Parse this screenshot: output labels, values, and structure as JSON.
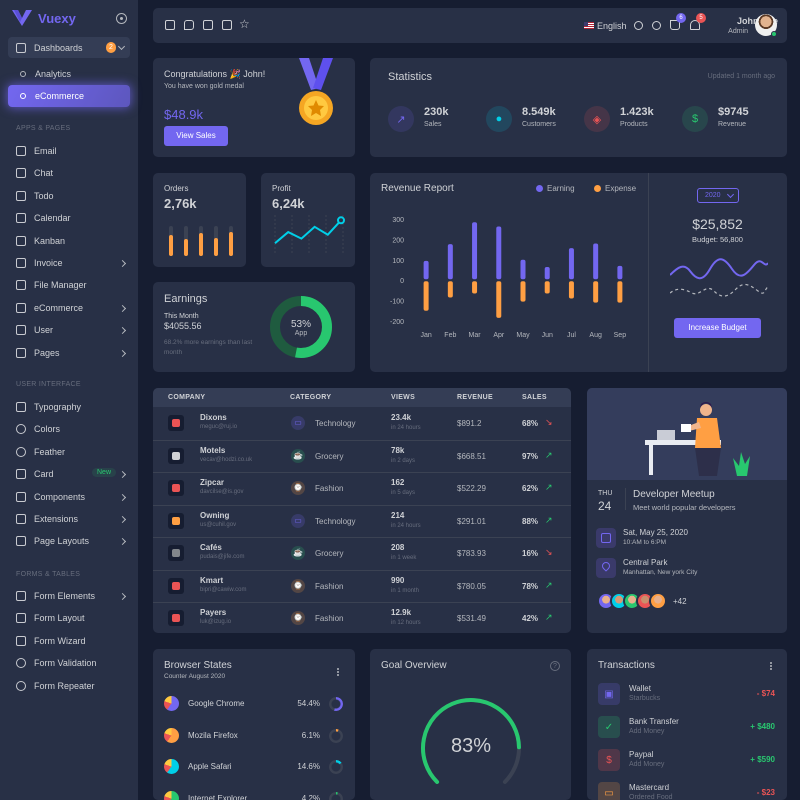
{
  "brand": {
    "name": "Vuexy",
    "color": "#7367f0"
  },
  "sidebar": {
    "dashboards": {
      "label": "Dashboards",
      "badge": "2"
    },
    "dashboard_items": [
      {
        "label": "Analytics"
      },
      {
        "label": "eCommerce",
        "active": true
      }
    ],
    "sections": {
      "apps": "APPS & PAGES",
      "ui": "USER INTERFACE",
      "forms": "FORMS & TABLES"
    },
    "apps": [
      {
        "label": "Email",
        "icon": "mail-icon"
      },
      {
        "label": "Chat",
        "icon": "message-icon"
      },
      {
        "label": "Todo",
        "icon": "check-square-icon"
      },
      {
        "label": "Calendar",
        "icon": "calendar-icon"
      },
      {
        "label": "Kanban",
        "icon": "grid-icon"
      },
      {
        "label": "Invoice",
        "icon": "file-text-icon",
        "chevron": true
      },
      {
        "label": "File Manager",
        "icon": "save-icon"
      },
      {
        "label": "eCommerce",
        "icon": "shopping-cart-icon",
        "chevron": true
      },
      {
        "label": "User",
        "icon": "user-icon",
        "chevron": true
      },
      {
        "label": "Pages",
        "icon": "file-icon",
        "chevron": true
      }
    ],
    "ui": [
      {
        "label": "Typography",
        "icon": "type-icon"
      },
      {
        "label": "Colors",
        "icon": "droplet-icon"
      },
      {
        "label": "Feather",
        "icon": "eye-icon"
      },
      {
        "label": "Card",
        "icon": "credit-card-icon",
        "badge": "New",
        "chevron": true
      },
      {
        "label": "Components",
        "icon": "briefcase-icon",
        "chevron": true
      },
      {
        "label": "Extensions",
        "icon": "box-icon",
        "chevron": true
      },
      {
        "label": "Page Layouts",
        "icon": "layout-icon",
        "chevron": true
      }
    ],
    "forms": [
      {
        "label": "Form Elements",
        "icon": "copy-icon",
        "chevron": true
      },
      {
        "label": "Form Layout",
        "icon": "box-icon"
      },
      {
        "label": "Form Wizard",
        "icon": "package-icon"
      },
      {
        "label": "Form Validation",
        "icon": "check-circle-icon"
      },
      {
        "label": "Form Repeater",
        "icon": "rotate-icon"
      }
    ]
  },
  "topbar": {
    "language": "English",
    "cart_count": "6",
    "notif_count": "5",
    "user_name": "John Doe",
    "user_role": "Admin"
  },
  "congrats": {
    "title": "Congratulations 🎉 John!",
    "subtitle": "You have won gold medal",
    "amount": "$48.9k",
    "button": "View Sales"
  },
  "statistics": {
    "title": "Statistics",
    "updated": "Updated 1 month ago",
    "items": [
      {
        "value": "230k",
        "label": "Sales",
        "color": "#7367f0",
        "icon": "trending-up-icon"
      },
      {
        "value": "8.549k",
        "label": "Customers",
        "color": "#00cfe8",
        "icon": "user-icon"
      },
      {
        "value": "1.423k",
        "label": "Products",
        "color": "#ea5455",
        "icon": "box-icon"
      },
      {
        "value": "$9745",
        "label": "Revenue",
        "color": "#28c76f",
        "icon": "dollar-icon"
      }
    ]
  },
  "orders": {
    "title": "Orders",
    "value": "2,76k",
    "bars": [
      0.7,
      0.55,
      0.75,
      0.6,
      0.8
    ]
  },
  "profit": {
    "title": "Profit",
    "value": "6,24k",
    "points": [
      15,
      32,
      22,
      40,
      28,
      50
    ]
  },
  "earnings": {
    "title": "Earnings",
    "period": "This Month",
    "amount": "$4055.56",
    "note": "68.2% more earnings than last month",
    "pct": 53,
    "pct_label": "53%",
    "center_label": "App"
  },
  "revenue": {
    "title": "Revenue Report",
    "legend": [
      "Earning",
      "Expense"
    ],
    "year": "2020",
    "total": "$25,852",
    "budget": "Budget: 56,800",
    "button": "Increase Budget"
  },
  "chart_data": {
    "type": "bar",
    "title": "Revenue Report",
    "categories": [
      "Jan",
      "Feb",
      "Mar",
      "Apr",
      "May",
      "Jun",
      "Jul",
      "Aug",
      "Sep"
    ],
    "series": [
      {
        "name": "Earning",
        "values": [
          95,
          177,
          284,
          263,
          100,
          65,
          157,
          180,
          70
        ],
        "color": "#7367f0"
      },
      {
        "name": "Expense",
        "values": [
          -145,
          -80,
          -60,
          -180,
          -100,
          -60,
          -85,
          -105,
          -105
        ],
        "color": "#ff9f43"
      }
    ],
    "yticks": [
      "300",
      "200",
      "100",
      "0",
      "-100",
      "-200"
    ],
    "ylim": [
      -200,
      300
    ]
  },
  "companies": {
    "headers": [
      "COMPANY",
      "CATEGORY",
      "VIEWS",
      "REVENUE",
      "SALES"
    ],
    "rows": [
      {
        "name": "Dixons",
        "email": "meguc@ruj.io",
        "category": "Technology",
        "views": "23.4k",
        "period": "in 24 hours",
        "revenue": "$891.2",
        "sales": "68%",
        "up": false,
        "cat_color": "#7367f0",
        "logo_color": "#ea5455"
      },
      {
        "name": "Motels",
        "email": "vecav@hodzi.co.uk",
        "category": "Grocery",
        "views": "78k",
        "period": "in 2 days",
        "revenue": "$668.51",
        "sales": "97%",
        "up": true,
        "cat_color": "#28c76f",
        "logo_color": "#d0d2d6"
      },
      {
        "name": "Zipcar",
        "email": "davcilse@is.gov",
        "category": "Fashion",
        "views": "162",
        "period": "in 5 days",
        "revenue": "$522.29",
        "sales": "62%",
        "up": true,
        "cat_color": "#ff9f43",
        "logo_color": "#ea5455"
      },
      {
        "name": "Owning",
        "email": "us@cuhil.gov",
        "category": "Technology",
        "views": "214",
        "period": "in 24 hours",
        "revenue": "$291.01",
        "sales": "88%",
        "up": true,
        "cat_color": "#7367f0",
        "logo_color": "#ff9f43"
      },
      {
        "name": "Cafés",
        "email": "pudais@jife.com",
        "category": "Grocery",
        "views": "208",
        "period": "in 1 week",
        "revenue": "$783.93",
        "sales": "16%",
        "up": false,
        "cat_color": "#28c76f",
        "logo_color": "#82868b"
      },
      {
        "name": "Kmart",
        "email": "bipri@cawiw.com",
        "category": "Fashion",
        "views": "990",
        "period": "in 1 month",
        "revenue": "$780.05",
        "sales": "78%",
        "up": true,
        "cat_color": "#ff9f43",
        "logo_color": "#ea5455"
      },
      {
        "name": "Payers",
        "email": "luk@izug.io",
        "category": "Fashion",
        "views": "12.9k",
        "period": "in 12 hours",
        "revenue": "$531.49",
        "sales": "42%",
        "up": true,
        "cat_color": "#ff9f43",
        "logo_color": "#ea5455"
      }
    ]
  },
  "meetup": {
    "day": "THU",
    "date": "24",
    "title": "Developer Meetup",
    "subtitle": "Meet world popular developers",
    "when": "Sat, May 25, 2020",
    "time": "10:AM to 6:PM",
    "where": "Central Park",
    "address": "Manhattan, New york City",
    "more": "+42"
  },
  "browsers": {
    "title": "Browser States",
    "subtitle": "Counter August 2020",
    "items": [
      {
        "name": "Google Chrome",
        "pct": "54.4%",
        "value": 54.4,
        "color": "#7367f0"
      },
      {
        "name": "Mozila Firefox",
        "pct": "6.1%",
        "value": 6.1,
        "color": "#ff9f43"
      },
      {
        "name": "Apple Safari",
        "pct": "14.6%",
        "value": 14.6,
        "color": "#00cfe8"
      },
      {
        "name": "Internet Explorer",
        "pct": "4.2%",
        "value": 4.2,
        "color": "#28c76f"
      }
    ]
  },
  "goal": {
    "title": "Goal Overview",
    "pct_label": "83%",
    "value": 83
  },
  "transactions": {
    "title": "Transactions",
    "items": [
      {
        "name": "Wallet",
        "sub": "Starbucks",
        "amount": "- $74",
        "color": "#7367f0",
        "amount_color": "#ea5455",
        "icon": "wallet-icon"
      },
      {
        "name": "Bank Transfer",
        "sub": "Add Money",
        "amount": "+ $480",
        "color": "#28c76f",
        "amount_color": "#28c76f",
        "icon": "check-icon"
      },
      {
        "name": "Paypal",
        "sub": "Add Money",
        "amount": "+ $590",
        "color": "#ea5455",
        "amount_color": "#28c76f",
        "icon": "dollar-icon"
      },
      {
        "name": "Mastercard",
        "sub": "Ordered Food",
        "amount": "- $23",
        "color": "#ff9f43",
        "amount_color": "#ea5455",
        "icon": "credit-card-icon"
      }
    ]
  }
}
